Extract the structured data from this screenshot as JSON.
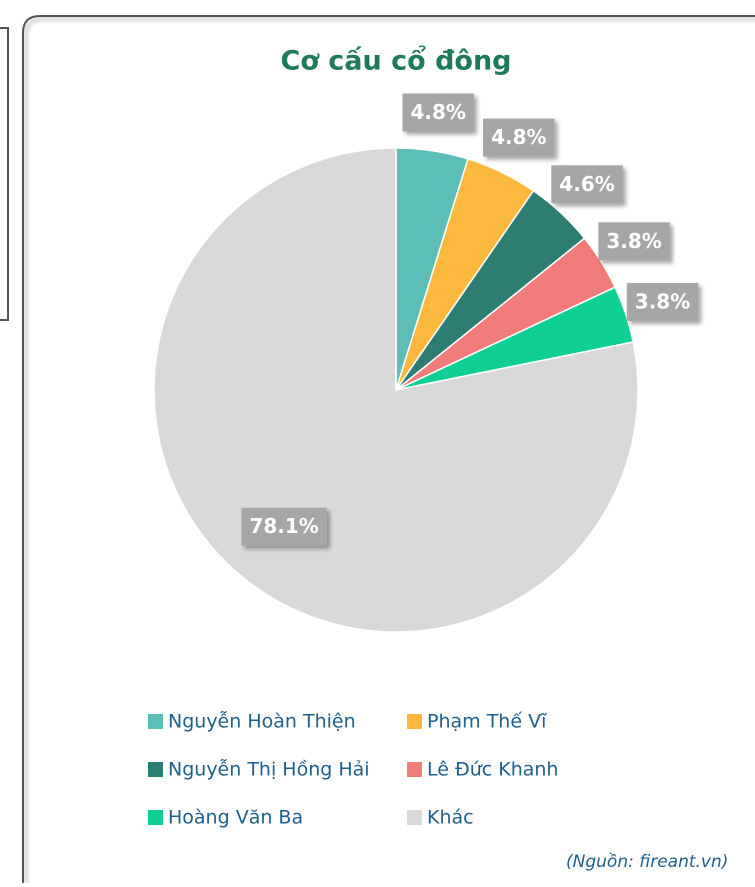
{
  "chart_data": {
    "type": "pie",
    "title": "Cơ cấu cổ đông",
    "categories": [
      "Nguyễn Hoàn Thiện",
      "Phạm Thế Vĩ",
      "Nguyễn Thị Hồng Hải",
      "Lê Đức Khanh",
      "Hoàng Văn Ba",
      "Khác"
    ],
    "values": [
      4.8,
      4.8,
      4.6,
      3.8,
      3.8,
      78.1
    ],
    "value_labels": [
      "4.8%",
      "4.8%",
      "4.6%",
      "3.8%",
      "3.8%",
      "78.1%"
    ],
    "colors": [
      "#5bbfb8",
      "#fdb93d",
      "#2e7d73",
      "#f07b78",
      "#10cf95",
      "#d9d9d9"
    ],
    "legend": "bottom",
    "source": "(Nguồn: fireant.vn)"
  }
}
